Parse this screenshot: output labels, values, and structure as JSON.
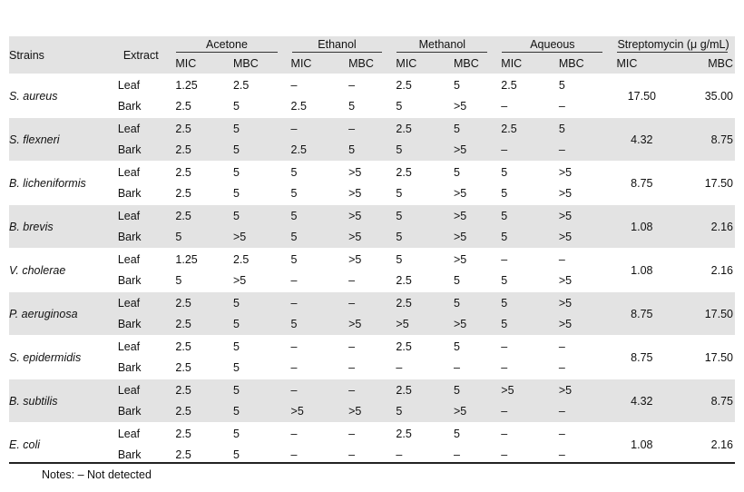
{
  "header": {
    "strains": "Strains",
    "extract": "Extract",
    "groups": [
      "Acetone",
      "Ethanol",
      "Methanol",
      "Aqueous",
      "Streptomycin (μ g/mL)"
    ],
    "sub": [
      "MIC",
      "MBC",
      "MIC",
      "MBC",
      "MIC",
      "MBC",
      "MIC",
      "MBC",
      "MIC",
      "MBC"
    ]
  },
  "rows": [
    {
      "strain": "S. aureus",
      "shade": false,
      "leaf": [
        "Leaf",
        "1.25",
        "2.5",
        "–",
        "–",
        "2.5",
        "5",
        "2.5",
        "5"
      ],
      "bark": [
        "Bark",
        "2.5",
        "5",
        "2.5",
        "5",
        "5",
        ">5",
        "–",
        "–"
      ],
      "strep": [
        "17.50",
        "35.00"
      ]
    },
    {
      "strain": "S. flexneri",
      "shade": true,
      "leaf": [
        "Leaf",
        "2.5",
        "5",
        "–",
        "–",
        "2.5",
        "5",
        "2.5",
        "5"
      ],
      "bark": [
        "Bark",
        "2.5",
        "5",
        "2.5",
        "5",
        "5",
        ">5",
        "–",
        "–"
      ],
      "strep": [
        "4.32",
        "8.75"
      ]
    },
    {
      "strain": "B. licheniformis",
      "shade": false,
      "leaf": [
        "Leaf",
        "2.5",
        "5",
        "5",
        ">5",
        "2.5",
        "5",
        "5",
        ">5"
      ],
      "bark": [
        "Bark",
        "2.5",
        "5",
        "5",
        ">5",
        "5",
        ">5",
        "5",
        ">5"
      ],
      "strep": [
        "8.75",
        "17.50"
      ]
    },
    {
      "strain": "B. brevis",
      "shade": true,
      "leaf": [
        "Leaf",
        "2.5",
        "5",
        "5",
        ">5",
        "5",
        ">5",
        "5",
        ">5"
      ],
      "bark": [
        "Bark",
        "5",
        ">5",
        "5",
        ">5",
        "5",
        ">5",
        "5",
        ">5"
      ],
      "strep": [
        "1.08",
        "2.16"
      ]
    },
    {
      "strain": "V. cholerae",
      "shade": false,
      "leaf": [
        "Leaf",
        "1.25",
        "2.5",
        "5",
        ">5",
        "5",
        ">5",
        "–",
        "–"
      ],
      "bark": [
        "Bark",
        "5",
        ">5",
        "–",
        "–",
        "2.5",
        "5",
        "5",
        ">5"
      ],
      "strep": [
        "1.08",
        "2.16"
      ]
    },
    {
      "strain": "P. aeruginosa",
      "shade": true,
      "leaf": [
        "Leaf",
        "2.5",
        "5",
        "–",
        "–",
        "2.5",
        "5",
        "5",
        ">5"
      ],
      "bark": [
        "Bark",
        "2.5",
        "5",
        "5",
        ">5",
        ">5",
        ">5",
        "5",
        ">5"
      ],
      "strep": [
        "8.75",
        "17.50"
      ]
    },
    {
      "strain": "S. epidermidis",
      "shade": false,
      "leaf": [
        "Leaf",
        "2.5",
        "5",
        "–",
        "–",
        "2.5",
        "5",
        "–",
        "–"
      ],
      "bark": [
        "Bark",
        "2.5",
        "5",
        "–",
        "–",
        "–",
        "–",
        "–",
        "–"
      ],
      "strep": [
        "8.75",
        "17.50"
      ]
    },
    {
      "strain": "B. subtilis",
      "shade": true,
      "leaf": [
        "Leaf",
        "2.5",
        "5",
        "–",
        "–",
        "2.5",
        "5",
        ">5",
        ">5"
      ],
      "bark": [
        "Bark",
        "2.5",
        "5",
        ">5",
        ">5",
        "5",
        ">5",
        "–",
        "–"
      ],
      "strep": [
        "4.32",
        "8.75"
      ]
    },
    {
      "strain": "E. coli",
      "shade": false,
      "leaf": [
        "Leaf",
        "2.5",
        "5",
        "–",
        "–",
        "2.5",
        "5",
        "–",
        "–"
      ],
      "bark": [
        "Bark",
        "2.5",
        "5",
        "–",
        "–",
        "–",
        "–",
        "–",
        "–"
      ],
      "strep": [
        "1.08",
        "2.16"
      ]
    }
  ],
  "notes": "Notes: – Not detected"
}
